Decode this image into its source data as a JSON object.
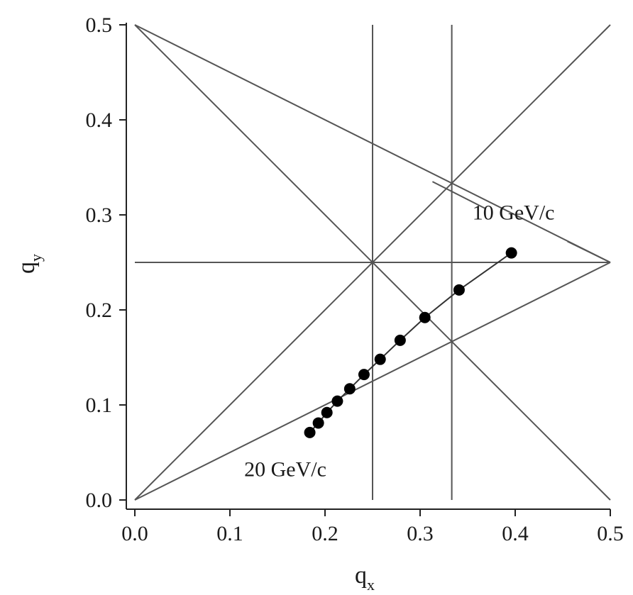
{
  "chart_data": {
    "type": "scatter",
    "title": "",
    "xlabel_base": "q",
    "xlabel_sub": "x",
    "ylabel_base": "q",
    "ylabel_sub": "y",
    "xlim": [
      0.0,
      0.5
    ],
    "ylim": [
      0.0,
      0.5
    ],
    "xticks": [
      "0.0",
      "0.1",
      "0.2",
      "0.3",
      "0.4",
      "0.5"
    ],
    "yticks": [
      "0.0",
      "0.1",
      "0.2",
      "0.3",
      "0.4",
      "0.5"
    ],
    "grid": false,
    "series": [
      {
        "points": [
          {
            "x": 0.184,
            "y": 0.071
          },
          {
            "x": 0.193,
            "y": 0.081
          },
          {
            "x": 0.202,
            "y": 0.092
          },
          {
            "x": 0.213,
            "y": 0.104
          },
          {
            "x": 0.226,
            "y": 0.117
          },
          {
            "x": 0.241,
            "y": 0.132
          },
          {
            "x": 0.258,
            "y": 0.148
          },
          {
            "x": 0.279,
            "y": 0.168
          },
          {
            "x": 0.305,
            "y": 0.192
          },
          {
            "x": 0.341,
            "y": 0.221
          },
          {
            "x": 0.396,
            "y": 0.26
          }
        ]
      }
    ],
    "resonance_lines": [
      {
        "x1": 0.25,
        "y1": 0.0,
        "x2": 0.25,
        "y2": 0.5
      },
      {
        "x1": 0.3333,
        "y1": 0.0,
        "x2": 0.3333,
        "y2": 0.5
      },
      {
        "x1": 0.0,
        "y1": 0.25,
        "x2": 0.5,
        "y2": 0.25
      },
      {
        "x1": 0.0,
        "y1": 0.0,
        "x2": 0.5,
        "y2": 0.5
      },
      {
        "x1": 0.0,
        "y1": 0.5,
        "x2": 0.5,
        "y2": 0.0
      },
      {
        "x1": 0.0,
        "y1": 0.0,
        "x2": 0.5,
        "y2": 0.25
      },
      {
        "x1": 0.0,
        "y1": 0.5,
        "x2": 0.5,
        "y2": 0.25
      }
    ],
    "annotations": [
      {
        "text": "10 GeV/c",
        "x": 0.355,
        "y": 0.295
      },
      {
        "text": "20 GeV/c",
        "x": 0.115,
        "y": 0.025
      }
    ],
    "leaders": [
      {
        "x1": 0.313,
        "y1": 0.335,
        "x2": 0.368,
        "y2": 0.307
      },
      {
        "x1": 0.455,
        "y1": 0.272,
        "x2": 0.5,
        "y2": 0.25
      }
    ]
  }
}
